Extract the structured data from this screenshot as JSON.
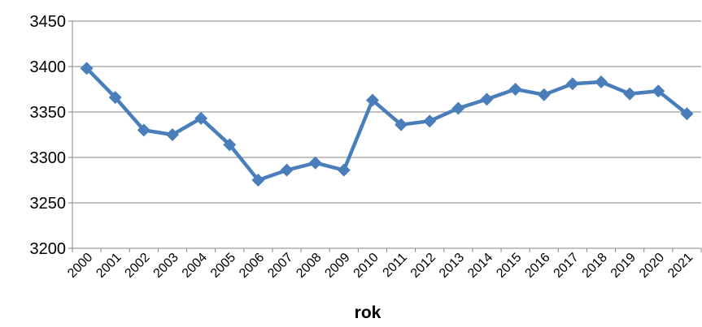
{
  "chart_data": {
    "type": "line",
    "title": "",
    "xlabel": "rok",
    "ylabel": "",
    "x": [
      "2000",
      "2001",
      "2002",
      "2003",
      "2004",
      "2005",
      "2006",
      "2007",
      "2008",
      "2009",
      "2010",
      "2011",
      "2012",
      "2013",
      "2014",
      "2015",
      "2016",
      "2017",
      "2018",
      "2019",
      "2020",
      "2021"
    ],
    "series": [
      {
        "values": [
          3398,
          3366,
          3330,
          3325,
          3343,
          3314,
          3275,
          3286,
          3294,
          3286,
          3363,
          3336,
          3340,
          3354,
          3364,
          3375,
          3369,
          3381,
          3383,
          3370,
          3373,
          3348
        ],
        "color": "#4a7ebb",
        "marker": "diamond"
      }
    ],
    "ylim": [
      3200,
      3450
    ],
    "yticks": [
      3200,
      3250,
      3300,
      3350,
      3400,
      3450
    ],
    "grid": true,
    "legend": "none",
    "colors": {
      "line": "#4a7ebb",
      "grid": "#868686",
      "axis": "#868686"
    }
  }
}
